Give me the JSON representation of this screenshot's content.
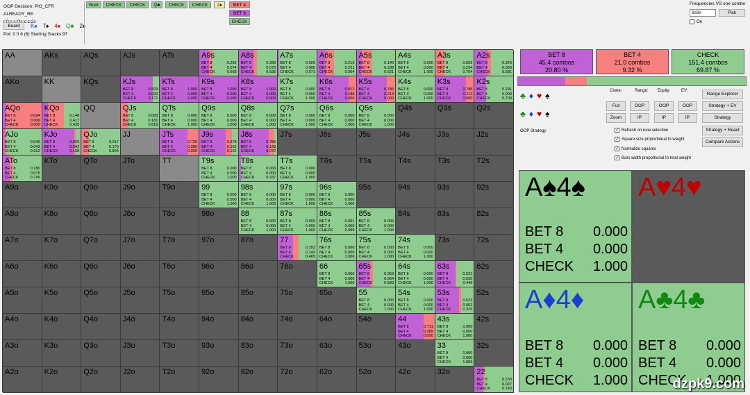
{
  "topbar": {
    "decision": "OOP Decision:  PIO_CFR ALREADY_RE",
    "line": "r:0:c:c:Qc:c:c:2s",
    "board_btn": "Board",
    "board_cards": [
      "K♠",
      "7♠",
      "4♠",
      "Q♣",
      "2♠"
    ],
    "pot": "Pot: 0 0 6 (6) Starting Stacks:97",
    "nav": [
      "Root",
      "CHECK",
      "CHECK",
      "Q♣",
      "CHECK",
      "CHECK",
      "2♠"
    ],
    "actions": [
      "BET 4",
      "BET 8",
      "CHECK"
    ],
    "freq_title": "Frequencies VS one combo",
    "freq_input": "9s9s",
    "pick": "Pick",
    "on": "On"
  },
  "hands": [
    [
      "AA",
      "AKs",
      "AQs",
      "AJs",
      "ATs",
      "A9s",
      "A8s",
      "A7s",
      "A6s",
      "A5s",
      "A4s",
      "A3s",
      "A2s"
    ],
    [
      "AKo",
      "KK",
      "KQs",
      "KJs",
      "KTs",
      "K9s",
      "K8s",
      "K7s",
      "K6s",
      "K5s",
      "K4s",
      "K3s",
      "K2s"
    ],
    [
      "AQo",
      "KQo",
      "QQ",
      "QJs",
      "QTs",
      "Q9s",
      "Q8s",
      "Q7s",
      "Q6s",
      "Q5s",
      "Q4s",
      "Q3s",
      "Q2s"
    ],
    [
      "AJo",
      "KJo",
      "QJo",
      "JJ",
      "JTs",
      "J9s",
      "J8s",
      "J7s",
      "J6s",
      "J5s",
      "J4s",
      "J3s",
      "J2s"
    ],
    [
      "ATo",
      "KTo",
      "QTo",
      "JTo",
      "TT",
      "T9s",
      "T8s",
      "T7s",
      "T6s",
      "T5s",
      "T4s",
      "T3s",
      "T2s"
    ],
    [
      "A9o",
      "K9o",
      "Q9o",
      "J9o",
      "T9o",
      "99",
      "98s",
      "97s",
      "96s",
      "95s",
      "94s",
      "93s",
      "92s"
    ],
    [
      "A8o",
      "K8o",
      "Q8o",
      "J8o",
      "T8o",
      "98o",
      "88",
      "87s",
      "86s",
      "85s",
      "84s",
      "83s",
      "82s"
    ],
    [
      "A7o",
      "K7o",
      "Q7o",
      "J7o",
      "T7o",
      "97o",
      "87o",
      "77",
      "76s",
      "75s",
      "74s",
      "73s",
      "72s"
    ],
    [
      "A6o",
      "K6o",
      "Q6o",
      "J6o",
      "T6o",
      "96o",
      "86o",
      "76o",
      "66",
      "65s",
      "64s",
      "63s",
      "62s"
    ],
    [
      "A5o",
      "K5o",
      "Q5o",
      "J5o",
      "T5o",
      "95o",
      "85o",
      "75o",
      "65o",
      "55",
      "54s",
      "53s",
      "52s"
    ],
    [
      "A4o",
      "K4o",
      "Q4o",
      "J4o",
      "T4o",
      "94o",
      "84o",
      "74o",
      "64o",
      "54o",
      "44",
      "43s",
      "42s"
    ],
    [
      "A3o",
      "K3o",
      "Q3o",
      "J3o",
      "T3o",
      "93o",
      "83o",
      "73o",
      "63o",
      "53o",
      "43o",
      "33",
      "32s"
    ],
    [
      "A2o",
      "K2o",
      "Q2o",
      "J2o",
      "T2o",
      "92o",
      "82o",
      "72o",
      "62o",
      "52o",
      "42o",
      "32o",
      "22"
    ]
  ],
  "strategies": {
    "A9s": [
      0.259,
      0.074,
      0.668
    ],
    "A8s": [
      0.39,
      0.075,
      0.535
    ],
    "A7s": [
      0.029,
      0.0,
      0.971
    ],
    "A6s": [
      0.215,
      0.221,
      0.564
    ],
    "A5s": [
      0.14,
      0.238,
      0.621
    ],
    "A4s": [
      0.0,
      0.0,
      1.0
    ],
    "A3s": [
      0.002,
      0.234,
      0.764
    ],
    "A2s": [
      0.326,
      0.093,
      0.581
    ],
    "KJs": [
      0.829,
      0.0,
      0.171
    ],
    "KTs": [
      1.0,
      0.0,
      0.0
    ],
    "K9s": [
      1.0,
      0.0,
      0.0
    ],
    "K8s": [
      1.0,
      0.0,
      0.0
    ],
    "K7s": [
      0.0,
      0.0,
      1.0
    ],
    "K6s": [
      0.812,
      0.188,
      0.0
    ],
    "K5s": [
      0.786,
      0.214,
      0.0
    ],
    "K4s": [
      0.0,
      0.0,
      1.0
    ],
    "K3s": [
      0.788,
      0.212,
      0.0
    ],
    "K2s": [
      0.291,
      0.0,
      0.709
    ],
    "AQo": [
      0.094,
      0.906,
      0.0
    ],
    "KQo": [
      0.148,
      0.417,
      0.435
    ],
    "QJs": [
      0.0,
      0.181,
      0.819
    ],
    "QTs": [
      0.0,
      0.0,
      1.0
    ],
    "Q9s": [
      0.0,
      0.0,
      1.0
    ],
    "Q8s": [
      0.0,
      0.0,
      1.0
    ],
    "Q7s": [
      0.0,
      0.0,
      1.0
    ],
    "Q6s": [
      0.0,
      0.0,
      1.0
    ],
    "Q5s": [
      0.0,
      0.0,
      1.0
    ],
    "AJo": [
      0.045,
      0.043,
      0.912
    ],
    "KJo": [
      0.829,
      0.042,
      0.128
    ],
    "QJo": [
      0.017,
      0.179,
      0.804
    ],
    "JTs": [
      0.72,
      0.28,
      0.0
    ],
    "J9s": [
      0.678,
      0.162,
      0.162
    ],
    "J8s": [
      0.785,
      0.143,
      0.072
    ],
    "ATo": [
      0.18,
      0.075,
      0.745
    ],
    "T9s": [
      0.0,
      0.0,
      1.0
    ],
    "T8s": [
      0.063,
      0.0,
      0.937
    ],
    "T7s": [
      0.0,
      0.0,
      1.0
    ],
    "99": [
      0.0,
      0.0,
      1.0
    ],
    "98s": [
      0.0,
      0.0,
      1.0
    ],
    "97s": [
      0.0,
      0.0,
      1.0
    ],
    "96s": [
      0.0,
      0.0,
      1.0
    ],
    "88": [
      0.0,
      0.0,
      1.0
    ],
    "87s": [
      0.0,
      0.0,
      1.0
    ],
    "86s": [
      0.001,
      0.0,
      0.999
    ],
    "85s": [
      0.0,
      0.0,
      1.0
    ],
    "77": [
      0.393,
      0.142,
      0.465
    ],
    "76s": [
      0.0,
      0.0,
      1.0
    ],
    "75s": [
      0.0,
      0.0,
      1.0
    ],
    "74s": [
      0.0,
      0.0,
      1.0
    ],
    "66": [
      0.0,
      0.0,
      1.0
    ],
    "65s": [
      0.353,
      0.064,
      0.583
    ],
    "64s": [
      0.0,
      0.0,
      1.0
    ],
    "63s": [
      0.521,
      0.03,
      0.449
    ],
    "55": [
      0.0,
      0.0,
      1.0
    ],
    "54s": [
      0.0,
      0.0,
      1.0
    ],
    "53s": [
      0.623,
      0.052,
      0.325
    ],
    "44": [
      0.711,
      0.289,
      0.0
    ],
    "43s": [
      0.0,
      0.0,
      1.0
    ],
    "33": [
      0.0,
      0.0,
      1.0
    ],
    "22": [
      0.23,
      0.027,
      0.743
    ]
  },
  "labels": [
    "BET 8",
    "BET 4",
    "CHECK"
  ],
  "summary": [
    {
      "title": "BET 8",
      "combos": "45.4 combos",
      "pct": "20.80 %",
      "color": "#c062d6"
    },
    {
      "title": "BET 4",
      "combos": "21.0 combos",
      "pct": "9.32 %",
      "color": "#f77f7f"
    },
    {
      "title": "CHECK",
      "combos": "151.4 combos",
      "pct": "69.87 %",
      "color": "#8fcc8f"
    }
  ],
  "freq_bar": {
    "bet8": 0.208,
    "bet4": 0.0932,
    "check": 0.6987
  },
  "controls": {
    "clone": "Clone:",
    "range": "Range:",
    "equity": "Equity:",
    "ev": "EV:",
    "full": "Full",
    "zoom": "Zoom",
    "oop": "OOP",
    "ip": "IP",
    "range_explorer": "Range Explorer",
    "strategy_ev": "Strategy + EV",
    "strategy": "Strategy",
    "strategy_react": "Strategy + React",
    "compare": "Compare Actions",
    "oop_strategy": "OOP Strategy",
    "checks": [
      "Refresh on new selection",
      "Square size proportional to weight",
      "Normalize squares",
      "Bars width proportional to total weight"
    ],
    "suits": [
      "♣",
      "♦",
      "♥",
      "♠"
    ]
  },
  "combos": [
    {
      "title": "A♠4♠",
      "color": "#000000",
      "vals": [
        "0.000",
        "0.000",
        "1.000"
      ],
      "bg": "green"
    },
    {
      "title": "A♥4♥",
      "color": "#c00000",
      "vals": [],
      "bg": "dark"
    },
    {
      "title": "A♦4♦",
      "color": "#1a3fd4",
      "vals": [
        "0.000",
        "0.000",
        "1.000"
      ],
      "bg": "green"
    },
    {
      "title": "A♣4♣",
      "color": "#118811",
      "vals": [
        "0.000",
        "0.000",
        "1.000"
      ],
      "bg": "green"
    }
  ],
  "watermark": "dzpk9.com"
}
